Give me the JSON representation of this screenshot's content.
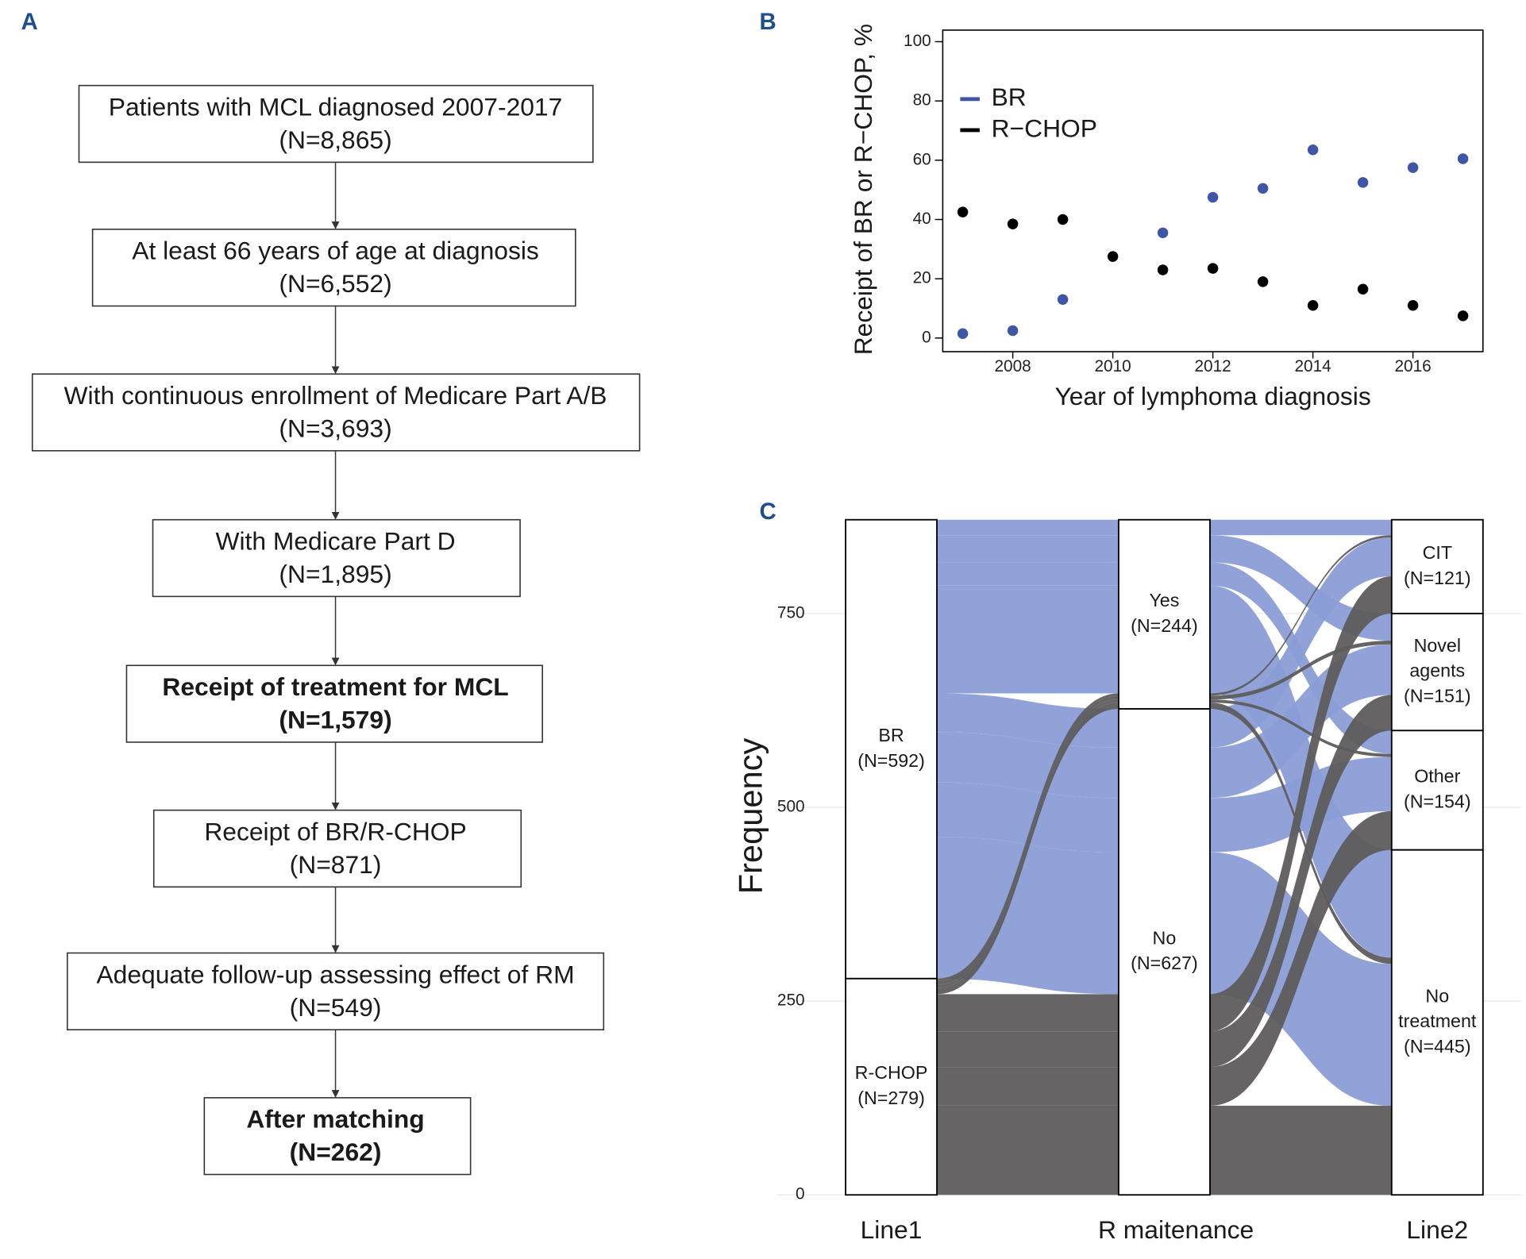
{
  "flowchart": {
    "panel": "A",
    "nodes": [
      {
        "lines": [
          "Patients with MCL diagnosed 2007-2017",
          "(N=8,865)"
        ],
        "bold": false
      },
      {
        "lines": [
          "At least 66 years of age at diagnosis",
          "(N=6,552)"
        ],
        "bold": false
      },
      {
        "lines": [
          "With continuous enrollment of Medicare Part A/B",
          "(N=3,693)"
        ],
        "bold": false
      },
      {
        "lines": [
          "With Medicare Part D",
          "(N=1,895)"
        ],
        "bold": false
      },
      {
        "lines": [
          "Receipt of treatment for MCL",
          "(N=1,579)"
        ],
        "bold": true
      },
      {
        "lines": [
          "Receipt of BR/R-CHOP",
          "(N=871)"
        ],
        "bold": false
      },
      {
        "lines": [
          "Adequate follow-up assessing effect of RM",
          "(N=549)"
        ],
        "bold": false
      },
      {
        "lines": [
          "After matching",
          "(N=262)"
        ],
        "bold": true
      }
    ]
  },
  "chart_data": [
    {
      "type": "scatter",
      "panel": "B",
      "xlabel": "Year of lymphoma diagnosis",
      "ylabel": "Receipt of BR or R−CHOP, %",
      "x": [
        2007,
        2008,
        2009,
        2010,
        2011,
        2012,
        2013,
        2014,
        2015,
        2016,
        2017
      ],
      "series": [
        {
          "name": "BR",
          "color": "#3f56a6",
          "values": [
            1.5,
            2.5,
            13,
            null,
            35.5,
            47.5,
            50.5,
            63.5,
            52.5,
            57.5,
            60.5
          ]
        },
        {
          "name": "R−CHOP",
          "color": "#000000",
          "values": [
            42.5,
            38.5,
            40,
            27.5,
            23,
            23.5,
            19,
            11,
            16.5,
            11,
            7.5
          ]
        }
      ],
      "xlim": [
        2006.6,
        2017.4
      ],
      "ylim": [
        -4.6,
        103.9
      ],
      "xticks": [
        2008,
        2010,
        2012,
        2014,
        2016
      ],
      "yticks": [
        0,
        20,
        40,
        60,
        80,
        100
      ],
      "legend": "upper left"
    },
    {
      "type": "alluvial",
      "panel": "C",
      "ylabel": "Frequency",
      "ylim": [
        0,
        871
      ],
      "yticks": [
        0,
        250,
        500,
        750
      ],
      "grid": true,
      "colors": [
        "#8a9dd6",
        "#5e5c5c"
      ],
      "axes": [
        {
          "name": "Line1",
          "strata": [
            {
              "name": [
                "BR"
              ],
              "value": 592,
              "value_label": "(N=592)"
            },
            {
              "name": [
                "R-CHOP"
              ],
              "value": 279,
              "value_label": "(N=279)"
            }
          ]
        },
        {
          "name": "R maitenance",
          "strata": [
            {
              "name": [
                "Yes"
              ],
              "value": 244,
              "value_label": "(N=244)"
            },
            {
              "name": [
                "No"
              ],
              "value": 627,
              "value_label": "(N=627)"
            }
          ]
        },
        {
          "name": "Line2",
          "strata": [
            {
              "name": [
                "CIT"
              ],
              "value": 121,
              "value_label": "(N=121)"
            },
            {
              "name": [
                "Novel",
                "agents"
              ],
              "value": 151,
              "value_label": "(N=151)"
            },
            {
              "name": [
                "Other"
              ],
              "value": 154,
              "value_label": "(N=154)"
            },
            {
              "name": [
                "No",
                "treatment"
              ],
              "value": 445,
              "value_label": "(N=445)"
            }
          ]
        }
      ],
      "flow_values": [
        [
          [
            20,
            35,
            30,
            139
          ],
          [
            50,
            65,
            70,
            183
          ]
        ],
        [
          [
            3,
            5,
            4,
            8
          ],
          [
            48,
            46,
            50,
            115
          ]
        ]
      ]
    }
  ]
}
